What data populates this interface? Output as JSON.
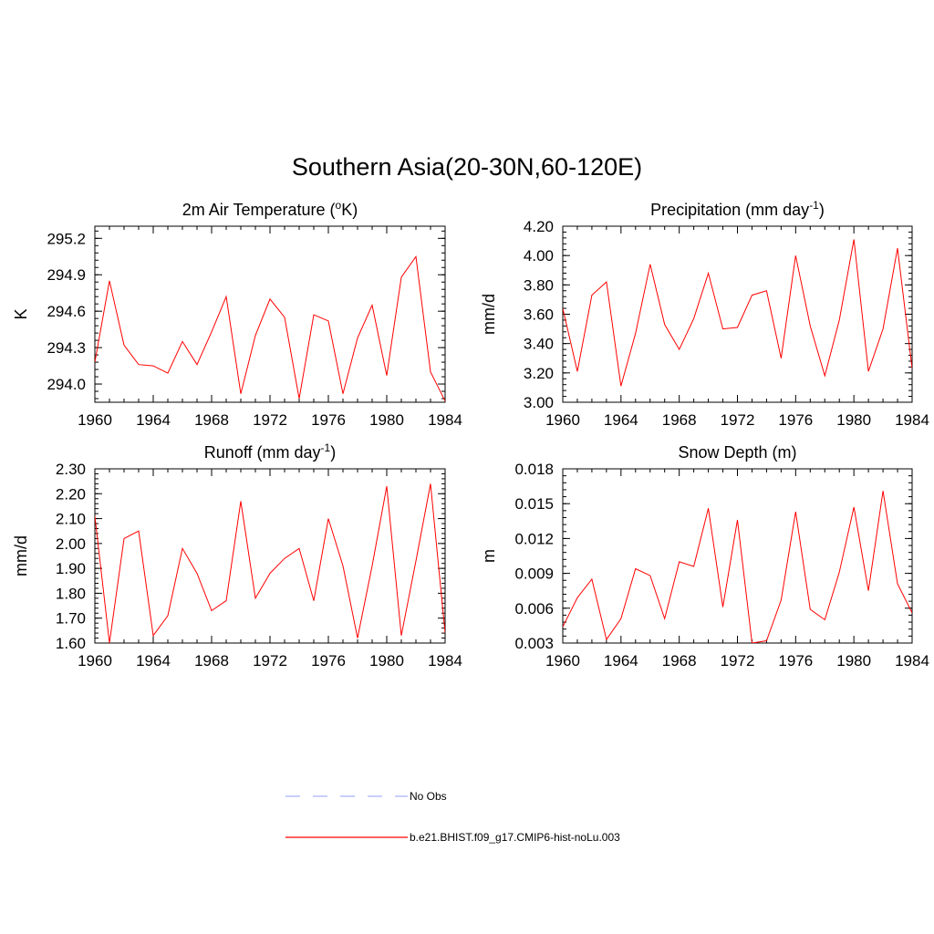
{
  "title": "Southern Asia(20-30N,60-120E)",
  "chart_data": [
    {
      "type": "line",
      "title": "2m Air Temperature (°K)",
      "title_parts": {
        "base": "2m Air Temperature (",
        "sup": "o",
        "tail": "K)"
      },
      "ylabel": "K",
      "xlim": [
        1960,
        1984
      ],
      "ylim": [
        293.85,
        295.3
      ],
      "xticks": [
        1960,
        1964,
        1968,
        1972,
        1976,
        1980,
        1984
      ],
      "yticks": [
        294.0,
        294.3,
        294.6,
        294.9,
        295.2
      ],
      "ytick_labels": [
        "294.0",
        "294.3",
        "294.6",
        "294.9",
        "295.2"
      ],
      "x": [
        1960,
        1961,
        1962,
        1963,
        1964,
        1965,
        1966,
        1967,
        1968,
        1969,
        1970,
        1971,
        1972,
        1973,
        1974,
        1975,
        1976,
        1977,
        1978,
        1979,
        1980,
        1981,
        1982,
        1983,
        1984
      ],
      "series": [
        {
          "values": [
            294.18,
            294.85,
            294.32,
            294.16,
            294.15,
            294.09,
            294.35,
            294.16,
            294.43,
            294.72,
            293.92,
            294.4,
            294.7,
            294.55,
            293.88,
            294.57,
            294.52,
            293.92,
            294.38,
            294.65,
            294.07,
            294.88,
            295.05,
            294.1,
            293.86
          ]
        }
      ]
    },
    {
      "type": "line",
      "title": "Precipitation (mm day-1)",
      "title_parts": {
        "base": "Precipitation (mm day",
        "sup": "-1",
        "tail": ")"
      },
      "ylabel": "mm/d",
      "xlim": [
        1960,
        1984
      ],
      "ylim": [
        3.0,
        4.2
      ],
      "xticks": [
        1960,
        1964,
        1968,
        1972,
        1976,
        1980,
        1984
      ],
      "yticks": [
        3.0,
        3.2,
        3.4,
        3.6,
        3.8,
        4.0,
        4.2
      ],
      "ytick_labels": [
        "3.00",
        "3.20",
        "3.40",
        "3.60",
        "3.80",
        "4.00",
        "4.20"
      ],
      "x": [
        1960,
        1961,
        1962,
        1963,
        1964,
        1965,
        1966,
        1967,
        1968,
        1969,
        1970,
        1971,
        1972,
        1973,
        1974,
        1975,
        1976,
        1977,
        1978,
        1979,
        1980,
        1981,
        1982,
        1983,
        1984
      ],
      "series": [
        {
          "values": [
            3.64,
            3.21,
            3.73,
            3.82,
            3.11,
            3.47,
            3.94,
            3.53,
            3.36,
            3.57,
            3.88,
            3.5,
            3.51,
            3.73,
            3.76,
            3.3,
            4.0,
            3.52,
            3.18,
            3.56,
            4.11,
            3.21,
            3.5,
            4.05,
            3.23
          ]
        }
      ]
    },
    {
      "type": "line",
      "title": "Runoff (mm day-1)",
      "title_parts": {
        "base": "Runoff (mm day",
        "sup": "-1",
        "tail": ")"
      },
      "ylabel": "mm/d",
      "xlim": [
        1960,
        1984
      ],
      "ylim": [
        1.6,
        2.3
      ],
      "xticks": [
        1960,
        1964,
        1968,
        1972,
        1976,
        1980,
        1984
      ],
      "yticks": [
        1.6,
        1.7,
        1.8,
        1.9,
        2.0,
        2.1,
        2.2,
        2.3
      ],
      "ytick_labels": [
        "1.60",
        "1.70",
        "1.80",
        "1.90",
        "2.00",
        "2.10",
        "2.20",
        "2.30"
      ],
      "x": [
        1960,
        1961,
        1962,
        1963,
        1964,
        1965,
        1966,
        1967,
        1968,
        1969,
        1970,
        1971,
        1972,
        1973,
        1974,
        1975,
        1976,
        1977,
        1978,
        1979,
        1980,
        1981,
        1982,
        1983,
        1984
      ],
      "series": [
        {
          "values": [
            2.11,
            1.6,
            2.02,
            2.05,
            1.63,
            1.71,
            1.98,
            1.88,
            1.73,
            1.77,
            2.17,
            1.78,
            1.88,
            1.94,
            1.98,
            1.77,
            2.1,
            1.91,
            1.62,
            1.91,
            2.23,
            1.63,
            1.93,
            2.24,
            1.64
          ]
        }
      ]
    },
    {
      "type": "line",
      "title": "Snow Depth (m)",
      "title_parts": {
        "base": "Snow Depth (m)",
        "sup": "",
        "tail": ""
      },
      "ylabel": "m",
      "xlim": [
        1960,
        1984
      ],
      "ylim": [
        0.003,
        0.018
      ],
      "xticks": [
        1960,
        1964,
        1968,
        1972,
        1976,
        1980,
        1984
      ],
      "yticks": [
        0.003,
        0.006,
        0.009,
        0.012,
        0.015,
        0.018
      ],
      "ytick_labels": [
        "0.003",
        "0.006",
        "0.009",
        "0.012",
        "0.015",
        "0.018"
      ],
      "x": [
        1960,
        1961,
        1962,
        1963,
        1964,
        1965,
        1966,
        1967,
        1968,
        1969,
        1970,
        1971,
        1972,
        1973,
        1974,
        1975,
        1976,
        1977,
        1978,
        1979,
        1980,
        1981,
        1982,
        1983,
        1984
      ],
      "series": [
        {
          "values": [
            0.0044,
            0.0069,
            0.0085,
            0.0033,
            0.0051,
            0.0094,
            0.0088,
            0.0051,
            0.01,
            0.0096,
            0.0146,
            0.0061,
            0.0136,
            0.003,
            0.0032,
            0.0067,
            0.0143,
            0.0059,
            0.005,
            0.0091,
            0.0147,
            0.0075,
            0.0161,
            0.0081,
            0.0056
          ]
        }
      ]
    }
  ],
  "legend": [
    {
      "label": "No Obs",
      "color": "#aab0ff",
      "dash": "dashed"
    },
    {
      "label": "b.e21.BHIST.f09_g17.CMIP6-hist-noLu.003",
      "color": "#ff0000",
      "dash": "solid"
    }
  ],
  "colors": {
    "line": "#ff0000",
    "axis": "#000000"
  }
}
